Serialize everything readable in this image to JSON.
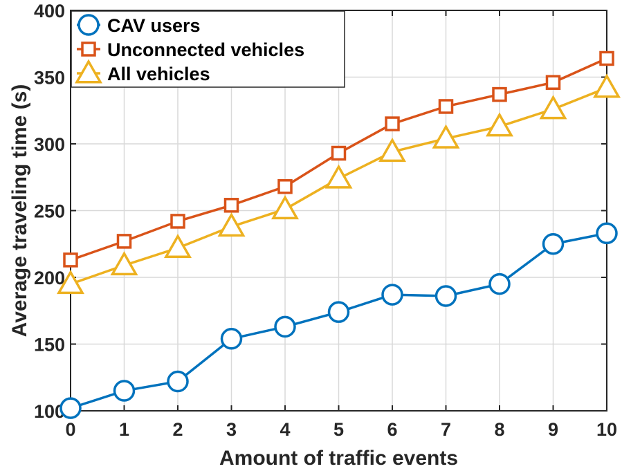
{
  "chart_data": {
    "type": "line",
    "xlabel": "Amount of traffic events",
    "ylabel": "Average traveling time (s)",
    "x": [
      0,
      1,
      2,
      3,
      4,
      5,
      6,
      7,
      8,
      9,
      10
    ],
    "xlim": [
      0,
      10
    ],
    "ylim": [
      100,
      400
    ],
    "xticks": [
      "0",
      "1",
      "2",
      "3",
      "4",
      "5",
      "6",
      "7",
      "8",
      "9",
      "10"
    ],
    "yticks": [
      "100",
      "150",
      "200",
      "250",
      "300",
      "350",
      "400"
    ],
    "ytick_values": [
      100,
      150,
      200,
      250,
      300,
      350,
      400
    ],
    "grid": true,
    "legend_position": "top-left",
    "series": [
      {
        "name": "CAV users",
        "marker": "circle",
        "color": "#0072BD",
        "values": [
          102,
          115,
          122,
          154,
          163,
          174,
          187,
          186,
          195,
          225,
          233
        ]
      },
      {
        "name": "Unconnected vehicles",
        "marker": "square",
        "color": "#D95319",
        "values": [
          213,
          227,
          242,
          254,
          268,
          293,
          315,
          328,
          337,
          346,
          364
        ]
      },
      {
        "name": "All vehicles",
        "marker": "triangle",
        "color": "#EDB120",
        "values": [
          195,
          209,
          222,
          238,
          251,
          274,
          294,
          304,
          313,
          326,
          342
        ]
      }
    ]
  }
}
